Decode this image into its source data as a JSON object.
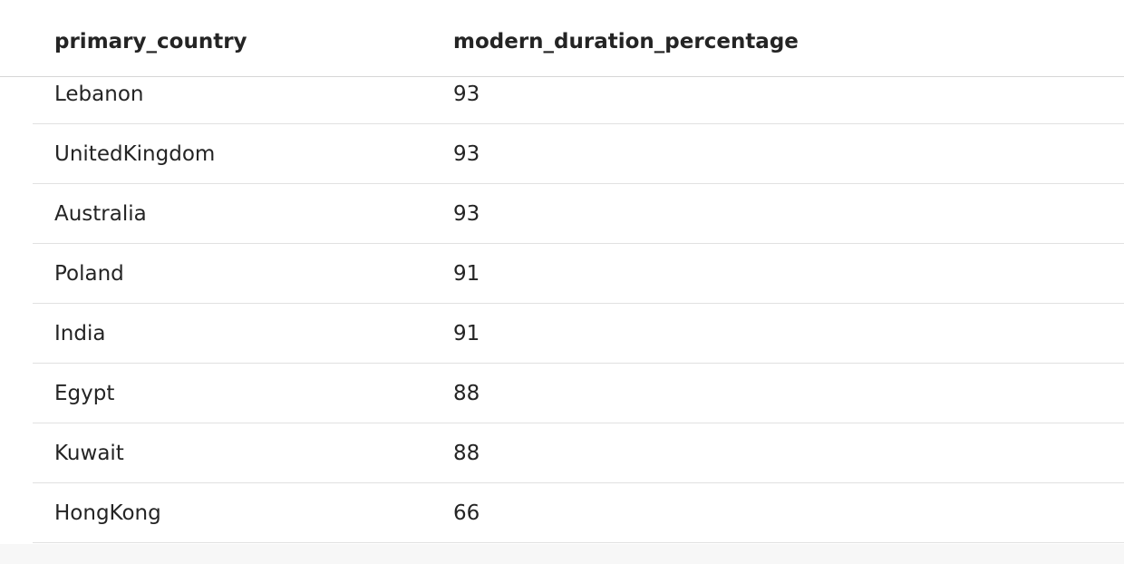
{
  "table": {
    "columns": [
      "primary_country",
      "modern_duration_percentage"
    ],
    "rows": [
      {
        "primary_country": "Lebanon",
        "modern_duration_percentage": "93"
      },
      {
        "primary_country": "UnitedKingdom",
        "modern_duration_percentage": "93"
      },
      {
        "primary_country": "Australia",
        "modern_duration_percentage": "93"
      },
      {
        "primary_country": "Poland",
        "modern_duration_percentage": "91"
      },
      {
        "primary_country": "India",
        "modern_duration_percentage": "91"
      },
      {
        "primary_country": "Egypt",
        "modern_duration_percentage": "88"
      },
      {
        "primary_country": "Kuwait",
        "modern_duration_percentage": "88"
      },
      {
        "primary_country": "HongKong",
        "modern_duration_percentage": "66"
      }
    ]
  }
}
